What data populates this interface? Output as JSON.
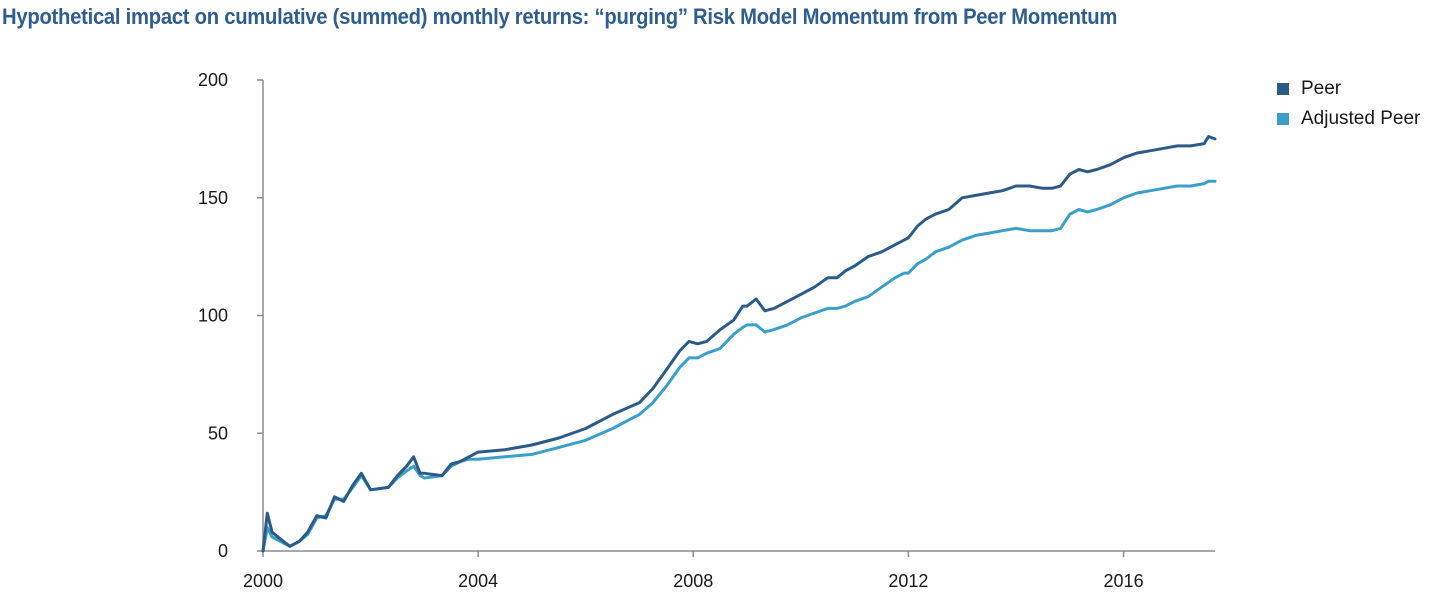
{
  "chart_data": {
    "type": "line",
    "title": "Hypothetical impact on cumulative (summed) monthly returns: “purging” Risk Model Momentum from Peer Momentum",
    "xlabel": "",
    "ylabel": "",
    "xlim": [
      2000.0,
      2017.7
    ],
    "ylim": [
      0,
      200
    ],
    "x_ticks": [
      "2000",
      "2004",
      "2008",
      "2012",
      "2016"
    ],
    "y_ticks": [
      "0",
      "50",
      "100",
      "150",
      "200"
    ],
    "grid": false,
    "legend_position": "top-right",
    "series": [
      {
        "name": "Peer",
        "color": "#2b5b87",
        "x": [
          2000.0,
          2000.08,
          2000.17,
          2000.33,
          2000.5,
          2000.67,
          2000.83,
          2001.0,
          2001.17,
          2001.33,
          2001.5,
          2001.67,
          2001.83,
          2002.0,
          2002.33,
          2002.5,
          2002.67,
          2002.8,
          2002.92,
          2003.0,
          2003.33,
          2003.5,
          2003.67,
          2003.83,
          2004.0,
          2004.5,
          2005.0,
          2005.5,
          2006.0,
          2006.5,
          2007.0,
          2007.25,
          2007.5,
          2007.75,
          2007.92,
          2008.08,
          2008.25,
          2008.5,
          2008.75,
          2008.92,
          2009.0,
          2009.17,
          2009.33,
          2009.5,
          2009.75,
          2010.0,
          2010.25,
          2010.5,
          2010.67,
          2010.83,
          2011.0,
          2011.25,
          2011.5,
          2011.75,
          2011.92,
          2012.0,
          2012.17,
          2012.33,
          2012.5,
          2012.75,
          2013.0,
          2013.25,
          2013.5,
          2013.75,
          2014.0,
          2014.25,
          2014.5,
          2014.67,
          2014.83,
          2015.0,
          2015.17,
          2015.33,
          2015.5,
          2015.75,
          2016.0,
          2016.25,
          2016.5,
          2016.75,
          2017.0,
          2017.25,
          2017.5,
          2017.58,
          2017.7
        ],
        "values": [
          0,
          16,
          8,
          5,
          2,
          4,
          8,
          15,
          14,
          23,
          21,
          28,
          33,
          26,
          27,
          32,
          36,
          40,
          33,
          33,
          32,
          37,
          38,
          40,
          42,
          43,
          45,
          48,
          52,
          58,
          63,
          69,
          77,
          85,
          89,
          88,
          89,
          94,
          98,
          104,
          104,
          107,
          102,
          103,
          106,
          109,
          112,
          116,
          116,
          119,
          121,
          125,
          127,
          130,
          132,
          133,
          138,
          141,
          143,
          145,
          150,
          151,
          152,
          153,
          155,
          155,
          154,
          154,
          155,
          160,
          162,
          161,
          162,
          164,
          167,
          169,
          170,
          171,
          172,
          172,
          173,
          176,
          175
        ]
      },
      {
        "name": "Adjusted Peer",
        "color": "#3aa0c9",
        "x": [
          2000.0,
          2000.08,
          2000.17,
          2000.33,
          2000.5,
          2000.67,
          2000.83,
          2001.0,
          2001.17,
          2001.33,
          2001.5,
          2001.67,
          2001.83,
          2002.0,
          2002.33,
          2002.5,
          2002.67,
          2002.8,
          2002.92,
          2003.0,
          2003.33,
          2003.5,
          2003.67,
          2003.83,
          2004.0,
          2004.5,
          2005.0,
          2005.5,
          2006.0,
          2006.5,
          2007.0,
          2007.25,
          2007.5,
          2007.75,
          2007.92,
          2008.08,
          2008.25,
          2008.5,
          2008.75,
          2008.92,
          2009.0,
          2009.17,
          2009.33,
          2009.5,
          2009.75,
          2010.0,
          2010.25,
          2010.5,
          2010.67,
          2010.83,
          2011.0,
          2011.25,
          2011.5,
          2011.75,
          2011.92,
          2012.0,
          2012.17,
          2012.33,
          2012.5,
          2012.75,
          2013.0,
          2013.25,
          2013.5,
          2013.75,
          2014.0,
          2014.25,
          2014.5,
          2014.67,
          2014.83,
          2015.0,
          2015.17,
          2015.33,
          2015.5,
          2015.75,
          2016.0,
          2016.25,
          2016.5,
          2016.75,
          2017.0,
          2017.25,
          2017.5,
          2017.58,
          2017.7
        ],
        "values": [
          0,
          10,
          6,
          4,
          2,
          4,
          7,
          14,
          15,
          22,
          22,
          27,
          32,
          26,
          27,
          31,
          34,
          36,
          32,
          31,
          32,
          36,
          38,
          39,
          39,
          40,
          41,
          44,
          47,
          52,
          58,
          63,
          70,
          78,
          82,
          82,
          84,
          86,
          92,
          95,
          96,
          96,
          93,
          94,
          96,
          99,
          101,
          103,
          103,
          104,
          106,
          108,
          112,
          116,
          118,
          118,
          122,
          124,
          127,
          129,
          132,
          134,
          135,
          136,
          137,
          136,
          136,
          136,
          137,
          143,
          145,
          144,
          145,
          147,
          150,
          152,
          153,
          154,
          155,
          155,
          156,
          157,
          157
        ]
      }
    ]
  }
}
